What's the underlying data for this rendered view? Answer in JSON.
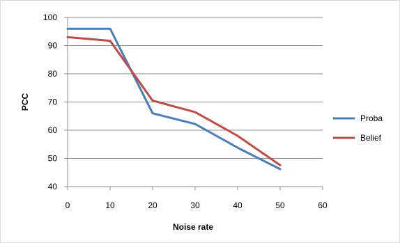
{
  "chart_data": {
    "type": "line",
    "x": [
      0,
      10,
      20,
      30,
      40,
      50
    ],
    "series": [
      {
        "name": "Proba",
        "values": [
          96,
          96,
          66,
          62.2,
          53.8,
          46.2
        ],
        "color": "#4a7ebb"
      },
      {
        "name": "Belief",
        "values": [
          93,
          91.7,
          70.5,
          66.4,
          58,
          47.6
        ],
        "color": "#be4b48"
      }
    ],
    "xlabel": "Noise rate",
    "ylabel": "PCC",
    "xlim": [
      0,
      60
    ],
    "ylim": [
      40,
      100
    ],
    "xticks": [
      0,
      10,
      20,
      30,
      40,
      50,
      60
    ],
    "yticks": [
      40,
      50,
      60,
      70,
      80,
      90,
      100
    ],
    "grid": "horizontal",
    "legend_position": "right"
  }
}
